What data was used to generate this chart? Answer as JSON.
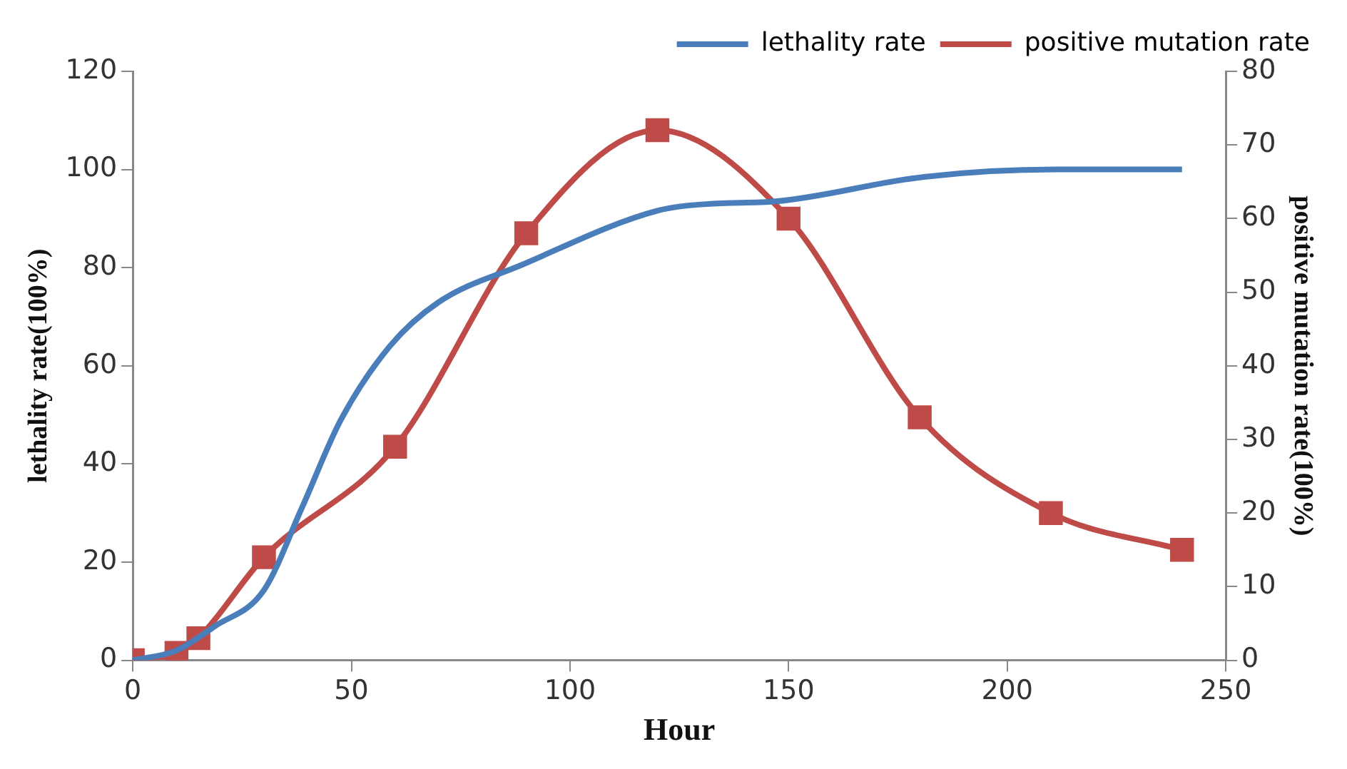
{
  "chart_data": {
    "type": "line",
    "xlabel": "Hour",
    "ylabel": "lethality rate(100%)",
    "y2label": "positive mutation rate(100%)",
    "xlim": [
      0,
      250
    ],
    "xticks": [
      0,
      50,
      100,
      150,
      200,
      250
    ],
    "ylim": [
      0,
      120
    ],
    "yticks": [
      0,
      20,
      40,
      60,
      80,
      100,
      120
    ],
    "y2lim": [
      0,
      80
    ],
    "y2ticks": [
      0,
      10,
      20,
      30,
      40,
      50,
      60,
      70,
      80
    ],
    "grid": false,
    "legend": "top right",
    "series": [
      {
        "name": "lethality rate",
        "color": "#4a7ebb",
        "marker": "none",
        "x": [
          0,
          10,
          18.7,
          30,
          38.6,
          47.6,
          58.8,
          70,
          88.8,
          120,
          132,
          147,
          181,
          211,
          240
        ],
        "values": [
          0,
          2,
          6.9,
          14.3,
          30.9,
          49,
          64,
          73,
          80.5,
          91.6,
          93,
          93.5,
          98.5,
          100,
          100
        ]
      },
      {
        "name": "positive mutation rate",
        "color": "#be4b48",
        "marker": "square",
        "axis": "y2",
        "x": [
          0,
          10,
          15,
          30,
          60,
          90,
          120,
          150,
          180,
          210,
          240
        ],
        "values": [
          0,
          1,
          3,
          14,
          29,
          58,
          72,
          60,
          33,
          20,
          15
        ]
      }
    ]
  }
}
